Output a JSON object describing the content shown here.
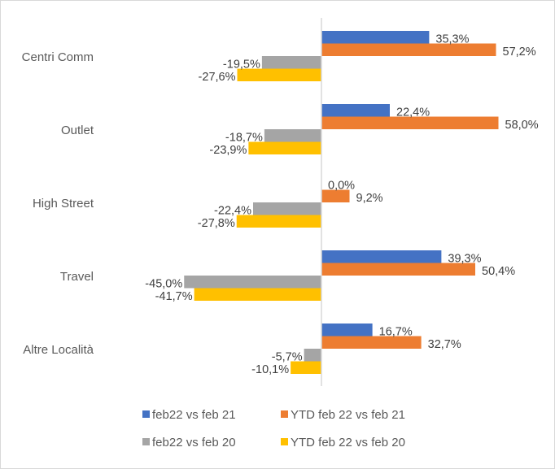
{
  "chart_data": {
    "type": "bar",
    "orientation": "horizontal",
    "title": "",
    "xlabel": "",
    "ylabel": "",
    "xlim": [
      -50,
      65
    ],
    "grid": false,
    "legend_position": "bottom",
    "categories": [
      "Centri Comm",
      "Outlet",
      "High Street",
      "Travel",
      "Altre Località"
    ],
    "series": [
      {
        "name": "feb22 vs feb 21",
        "color": "#4472C4",
        "values": [
          35.3,
          22.4,
          0.0,
          39.3,
          16.7
        ],
        "labels": [
          "35,3%",
          "22,4%",
          "0,0%",
          "39,3%",
          "16,7%"
        ]
      },
      {
        "name": "YTD feb 22 vs feb 21",
        "color": "#ED7D31",
        "values": [
          57.2,
          58.0,
          9.2,
          50.4,
          32.7
        ],
        "labels": [
          "57,2%",
          "58,0%",
          "9,2%",
          "50,4%",
          "32,7%"
        ]
      },
      {
        "name": "feb22 vs feb 20",
        "color": "#A5A5A5",
        "values": [
          -19.5,
          -18.7,
          -22.4,
          -45.0,
          -5.7
        ],
        "labels": [
          "-19,5%",
          "-18,7%",
          "-22,4%",
          "-45,0%",
          "-5,7%"
        ]
      },
      {
        "name": "YTD feb 22 vs feb 20",
        "color": "#FFC000",
        "values": [
          -27.6,
          -23.9,
          -27.8,
          -41.7,
          -10.1
        ],
        "labels": [
          "-27,6%",
          "-23,9%",
          "-27,8%",
          "-41,7%",
          "-10,1%"
        ]
      }
    ],
    "axis_color": "#d9d9d9",
    "text_color": "#595959",
    "label_color": "#404040"
  }
}
